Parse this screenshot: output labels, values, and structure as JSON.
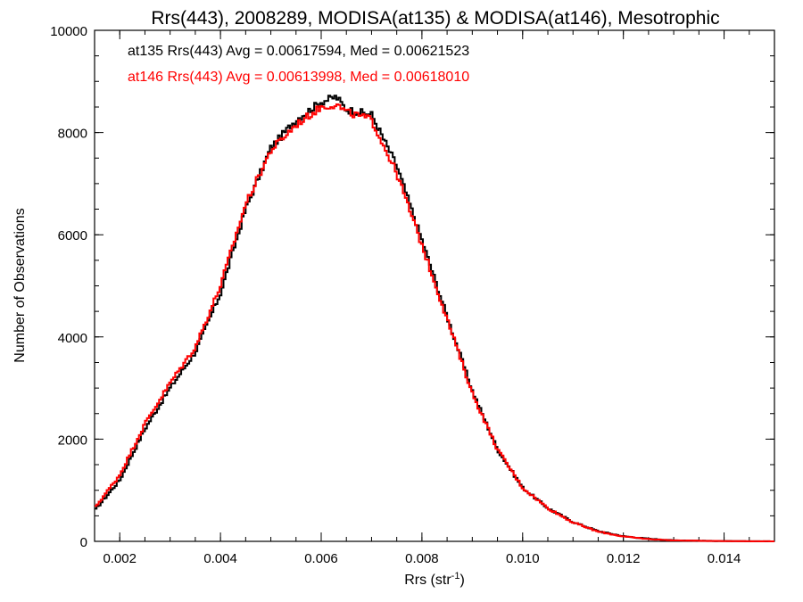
{
  "chart_data": {
    "type": "line",
    "title": "Rrs(443), 2008289, MODISA(at135) & MODISA(at146), Mesotrophic",
    "xlabel": "Rrs (str",
    "xlabel_sup": "-1",
    "xlabel_close": ")",
    "ylabel": "Number of Observations",
    "xlim": [
      0.0015,
      0.015
    ],
    "ylim": [
      0,
      10000
    ],
    "x_ticks": [
      0.002,
      0.004,
      0.006,
      0.008,
      0.01,
      0.012,
      0.014
    ],
    "x_tick_labels": [
      "0.002",
      "0.004",
      "0.006",
      "0.008",
      "0.010",
      "0.012",
      "0.014"
    ],
    "y_ticks": [
      0,
      2000,
      4000,
      6000,
      8000,
      10000
    ],
    "y_tick_labels": [
      "0",
      "2000",
      "4000",
      "6000",
      "8000",
      "10000"
    ],
    "grid": false,
    "annotations": [
      {
        "text": "at135 Rrs(443) Avg = 0.00617594, Med = 0.00621523",
        "color": "#000000"
      },
      {
        "text": "at146 Rrs(443) Avg = 0.00613998, Med = 0.00618010",
        "color": "#ff0000"
      }
    ],
    "series": [
      {
        "color": "#000000",
        "x": [
          0.0015,
          0.002,
          0.0025,
          0.003,
          0.0035,
          0.004,
          0.0045,
          0.005,
          0.0055,
          0.006,
          0.0063,
          0.0065,
          0.007,
          0.0075,
          0.008,
          0.0085,
          0.009,
          0.0095,
          0.01,
          0.0105,
          0.011,
          0.0115,
          0.012,
          0.0125,
          0.013,
          0.014,
          0.015
        ],
        "y": [
          600,
          1200,
          2200,
          3000,
          3700,
          4850,
          6500,
          7700,
          8250,
          8600,
          8700,
          8450,
          8350,
          7350,
          5900,
          4400,
          2950,
          1800,
          1050,
          650,
          380,
          200,
          100,
          50,
          20,
          5,
          0
        ]
      },
      {
        "color": "#ff0000",
        "x": [
          0.0015,
          0.002,
          0.0025,
          0.003,
          0.0035,
          0.004,
          0.0045,
          0.005,
          0.0055,
          0.006,
          0.0063,
          0.0065,
          0.007,
          0.0075,
          0.008,
          0.0085,
          0.009,
          0.0095,
          0.01,
          0.0105,
          0.011,
          0.0115,
          0.012,
          0.0125,
          0.013,
          0.014,
          0.015
        ],
        "y": [
          650,
          1300,
          2300,
          3100,
          3800,
          5000,
          6600,
          7650,
          8150,
          8500,
          8550,
          8400,
          8250,
          7200,
          5800,
          4350,
          2900,
          1800,
          1050,
          650,
          370,
          190,
          95,
          45,
          18,
          5,
          0
        ]
      }
    ]
  }
}
